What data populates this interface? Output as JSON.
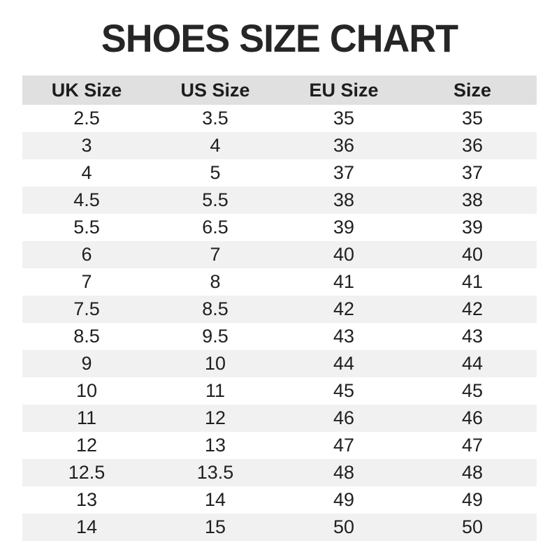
{
  "title": "SHOES SIZE CHART",
  "colors": {
    "header_bg": "#e0e0e0",
    "row_alt_bg": "#f1f1f1",
    "text": "#1f1f1f",
    "background": "#ffffff"
  },
  "chart_data": {
    "type": "table",
    "title": "SHOES SIZE CHART",
    "columns": [
      "UK Size",
      "US Size",
      "EU Size",
      "Size"
    ],
    "rows": [
      [
        "2.5",
        "3.5",
        "35",
        "35"
      ],
      [
        "3",
        "4",
        "36",
        "36"
      ],
      [
        "4",
        "5",
        "37",
        "37"
      ],
      [
        "4.5",
        "5.5",
        "38",
        "38"
      ],
      [
        "5.5",
        "6.5",
        "39",
        "39"
      ],
      [
        "6",
        "7",
        "40",
        "40"
      ],
      [
        "7",
        "8",
        "41",
        "41"
      ],
      [
        "7.5",
        "8.5",
        "42",
        "42"
      ],
      [
        "8.5",
        "9.5",
        "43",
        "43"
      ],
      [
        "9",
        "10",
        "44",
        "44"
      ],
      [
        "10",
        "11",
        "45",
        "45"
      ],
      [
        "11",
        "12",
        "46",
        "46"
      ],
      [
        "12",
        "13",
        "47",
        "47"
      ],
      [
        "12.5",
        "13.5",
        "48",
        "48"
      ],
      [
        "13",
        "14",
        "49",
        "49"
      ],
      [
        "14",
        "15",
        "50",
        "50"
      ]
    ],
    "layout": {
      "striped": true,
      "first_body_row_bg": "white",
      "alternate_body_row_bg": "light-gray"
    }
  }
}
